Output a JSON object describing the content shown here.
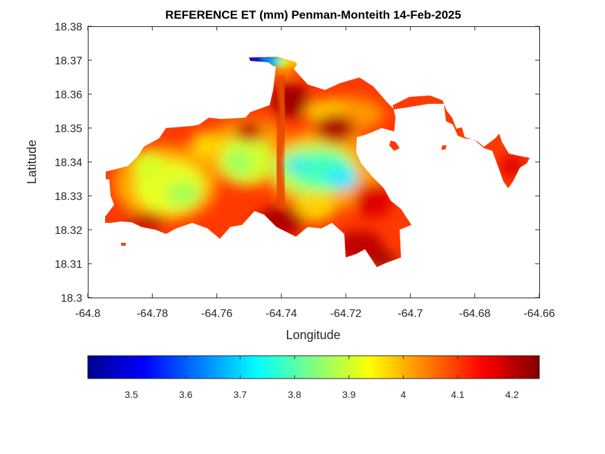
{
  "chart_data": {
    "type": "heatmap",
    "title": "REFERENCE ET (mm) Penman-Monteith 14-Feb-2025",
    "xlabel": "Longitude",
    "ylabel": "Latitude",
    "xlim": [
      -64.8,
      -64.66
    ],
    "ylim": [
      18.3,
      18.38
    ],
    "xticks": [
      "-64.8",
      "-64.78",
      "-64.76",
      "-64.74",
      "-64.72",
      "-64.7",
      "-64.68",
      "-64.66"
    ],
    "yticks": [
      "18.3",
      "18.31",
      "18.32",
      "18.33",
      "18.34",
      "18.35",
      "18.36",
      "18.37",
      "18.38"
    ],
    "colormap": "jet",
    "colorbar": {
      "location": "bottom",
      "clim": [
        3.42,
        4.25
      ],
      "ticks": [
        "3.5",
        "3.6",
        "3.7",
        "3.8",
        "3.9",
        "4",
        "4.1",
        "4.2"
      ]
    },
    "grid": false,
    "region_fill_samples": [
      {
        "lon": -64.785,
        "lat": 18.332,
        "value": 3.98
      },
      {
        "lon": -64.778,
        "lat": 18.33,
        "value": 3.92
      },
      {
        "lon": -64.77,
        "lat": 18.338,
        "value": 3.96
      },
      {
        "lon": -64.76,
        "lat": 18.345,
        "value": 4.08
      },
      {
        "lon": -64.748,
        "lat": 18.338,
        "value": 3.9
      },
      {
        "lon": -64.742,
        "lat": 18.34,
        "value": 4.05
      },
      {
        "lon": -64.738,
        "lat": 18.36,
        "value": 4.2
      },
      {
        "lon": -64.732,
        "lat": 18.34,
        "value": 3.78
      },
      {
        "lon": -64.722,
        "lat": 18.335,
        "value": 3.75
      },
      {
        "lon": -64.725,
        "lat": 18.349,
        "value": 4.22
      },
      {
        "lon": -64.745,
        "lat": 18.322,
        "value": 4.22
      },
      {
        "lon": -64.712,
        "lat": 18.312,
        "value": 4.22
      },
      {
        "lon": -64.748,
        "lat": 18.37,
        "value": 3.5
      },
      {
        "lon": -64.742,
        "lat": 18.369,
        "value": 3.85
      },
      {
        "lon": -64.7,
        "lat": 18.357,
        "value": 4.15
      },
      {
        "lon": -64.67,
        "lat": 18.338,
        "value": 4.15
      }
    ]
  }
}
